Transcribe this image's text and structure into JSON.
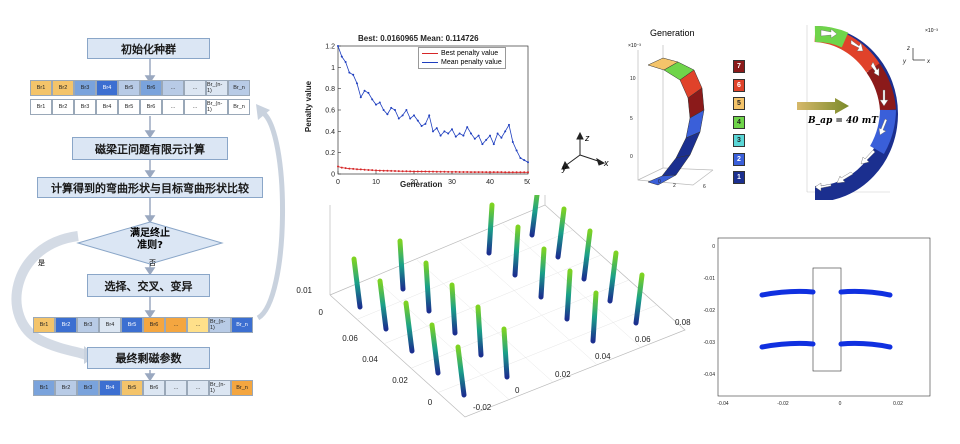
{
  "flowchart": {
    "init_label": "初始化种群",
    "fem_label": "磁梁正问题有限元计算",
    "compare_label": "计算得到的弯曲形状与目标弯曲形状比较",
    "decision_label_1": "满足终止",
    "decision_label_2": "准则?",
    "yes_label": "是",
    "no_label": "否",
    "ga_label": "选择、交叉、变异",
    "final_label": "最终剩磁参数",
    "row1": [
      "Br1",
      "Br2",
      "Br3",
      "Br4",
      "Br5",
      "Br6",
      "...",
      "...",
      "Br_(n-1)",
      "Br_n"
    ],
    "row1_colors": [
      "#f4c46a",
      "#f4c46a",
      "#7aa3dc",
      "#3c6fd1",
      "#b8cbe6",
      "#7aa3dc",
      "#b8cbe6",
      "#dce6f2",
      "#dce6f2",
      "#b8cbe6"
    ],
    "row2": [
      "Br1",
      "Br2",
      "Br3",
      "Br4",
      "Br5",
      "Br6",
      "...",
      "...",
      "Br_(n-1)",
      "Br_n"
    ],
    "row2_colors": [
      "#ffffff",
      "#ffffff",
      "#ffffff",
      "#ffffff",
      "#ffffff",
      "#ffffff",
      "#ffffff",
      "#ffffff",
      "#ffffff",
      "#ffffff"
    ],
    "row3": [
      "Br1",
      "Br2",
      "Br3",
      "Br4",
      "Br5",
      "Br6",
      "...",
      "...",
      "Br_(n-1)",
      "Br_n"
    ],
    "row3_colors": [
      "#f4c46a",
      "#3c6fd1",
      "#b8cbe6",
      "#dce6f2",
      "#3c6fd1",
      "#f4a640",
      "#f4a640",
      "#ffe08a",
      "#b8cbe6",
      "#3c6fd1"
    ],
    "row4": [
      "Br1",
      "Br2",
      "Br3",
      "Br4",
      "Br5",
      "Br6",
      "...",
      "...",
      "Br_(n-1)",
      "Br_n"
    ],
    "row4_colors": [
      "#7aa3dc",
      "#b8cbe6",
      "#7aa3dc",
      "#3c6fd1",
      "#f4c46a",
      "#dce6f2",
      "#dce6f2",
      "#dce6f2",
      "#dce6f2",
      "#f4a640"
    ]
  },
  "penalty_chart": {
    "title": "Best: 0.0160965 Mean: 0.114726",
    "xlabel": "Generation",
    "ylabel": "Penalty value",
    "legend_best": "Best penalty value",
    "legend_mean": "Mean penalty value",
    "best_color": "#d62728",
    "mean_color": "#1f3fbf"
  },
  "generation_panel": {
    "title": "Generation",
    "exp_label": "×10⁻³",
    "keys": [
      "7",
      "6",
      "5",
      "4",
      "3",
      "2",
      "1"
    ],
    "key_colors": [
      "#8b1a1a",
      "#e0422a",
      "#f4c46a",
      "#6fd44a",
      "#5ad6d6",
      "#3a5fd9",
      "#1b2f8f"
    ]
  },
  "field_panel": {
    "field_label": "B_ap = 40 mT",
    "exp_label": "×10⁻³"
  },
  "axes_triad": {
    "x": "x",
    "y": "y",
    "z": "z"
  },
  "chart_data": [
    {
      "type": "line",
      "title": "Best: 0.0160965 Mean: 0.114726",
      "xlabel": "Generation",
      "ylabel": "Penalty value",
      "xlim": [
        0,
        50
      ],
      "ylim": [
        0,
        1.2
      ],
      "xticks": [
        0,
        10,
        20,
        30,
        40,
        50
      ],
      "yticks": [
        0,
        0.2,
        0.4,
        0.6,
        0.8,
        1,
        1.2
      ],
      "x": [
        0,
        1,
        2,
        3,
        4,
        5,
        6,
        7,
        8,
        9,
        10,
        11,
        12,
        13,
        14,
        15,
        16,
        17,
        18,
        19,
        20,
        21,
        22,
        23,
        24,
        25,
        26,
        27,
        28,
        29,
        30,
        31,
        32,
        33,
        34,
        35,
        36,
        37,
        38,
        39,
        40,
        41,
        42,
        43,
        44,
        45,
        46,
        47,
        48,
        49,
        50
      ],
      "series": [
        {
          "name": "Best penalty value",
          "values": [
            0.07,
            0.06,
            0.055,
            0.05,
            0.048,
            0.045,
            0.043,
            0.04,
            0.038,
            0.036,
            0.034,
            0.032,
            0.031,
            0.03,
            0.029,
            0.028,
            0.027,
            0.026,
            0.026,
            0.025,
            0.024,
            0.024,
            0.023,
            0.023,
            0.022,
            0.022,
            0.021,
            0.021,
            0.021,
            0.02,
            0.02,
            0.02,
            0.019,
            0.019,
            0.019,
            0.018,
            0.018,
            0.018,
            0.018,
            0.017,
            0.017,
            0.017,
            0.017,
            0.017,
            0.016,
            0.016,
            0.016,
            0.016,
            0.016,
            0.016,
            0.016
          ]
        },
        {
          "name": "Mean penalty value",
          "values": [
            1.2,
            1.1,
            1.05,
            0.95,
            0.93,
            0.85,
            0.72,
            0.78,
            0.76,
            0.7,
            0.65,
            0.67,
            0.6,
            0.56,
            0.62,
            0.6,
            0.52,
            0.55,
            0.6,
            0.52,
            0.55,
            0.5,
            0.45,
            0.47,
            0.55,
            0.4,
            0.43,
            0.36,
            0.4,
            0.38,
            0.42,
            0.35,
            0.38,
            0.36,
            0.44,
            0.38,
            0.33,
            0.36,
            0.28,
            0.32,
            0.36,
            0.28,
            0.38,
            0.34,
            0.4,
            0.46,
            0.3,
            0.22,
            0.15,
            0.13,
            0.11
          ]
        }
      ]
    },
    {
      "type": "scatter",
      "title": "",
      "xticks": [
        "-0.02",
        "0",
        "0.02",
        "0.04",
        "0.06",
        "0.08"
      ],
      "yticks": [
        "0",
        "0.02",
        "0.04",
        "0.06"
      ],
      "zticks": [
        "0",
        "0.01"
      ]
    },
    {
      "type": "line",
      "title": "",
      "xticks": [
        "-0.04",
        "-0.02",
        "0",
        "0.02"
      ],
      "yticks": [
        "0",
        "-0.01",
        "-0.02",
        "-0.03",
        "-0.04"
      ]
    }
  ]
}
